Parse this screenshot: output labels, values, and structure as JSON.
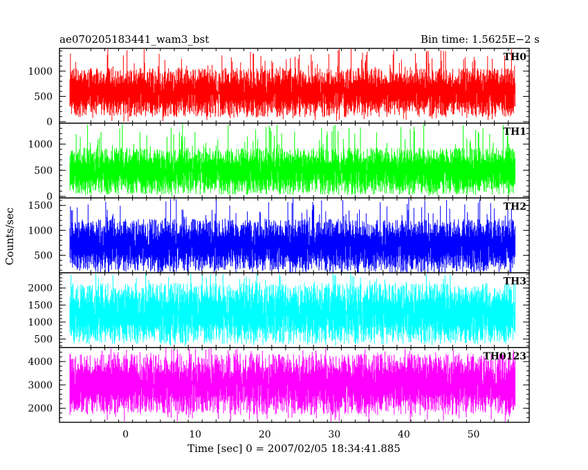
{
  "header": {
    "title": "ae070205183441_wam3_bst",
    "bin_time": "Bin time: 1.5625E−2 s"
  },
  "chart_data": {
    "type": "line",
    "xlabel": "Time [sec] 0 = 2007/02/05 18:34:41.885",
    "ylabel": "Counts/sec",
    "xlim": [
      -9.5,
      58
    ],
    "x_data_range": [
      -8,
      56
    ],
    "xticks": [
      0,
      10,
      20,
      30,
      40,
      50
    ],
    "grid": false,
    "panels": [
      {
        "label": "TH0",
        "color": "#ff0000",
        "ylim": [
          -30,
          1450
        ],
        "yticks": [
          0,
          500,
          1000
        ],
        "band": [
          250,
          900
        ],
        "spike_min": 0,
        "spike_max": 1450
      },
      {
        "label": "TH1",
        "color": "#00ff00",
        "ylim": [
          -30,
          1400
        ],
        "yticks": [
          0,
          500,
          1000
        ],
        "band": [
          180,
          780
        ],
        "spike_min": 0,
        "spike_max": 1400
      },
      {
        "label": "TH2",
        "color": "#0000ff",
        "ylim": [
          150,
          1650
        ],
        "yticks": [
          500,
          1000,
          1500
        ],
        "band": [
          330,
          1050
        ],
        "spike_min": 150,
        "spike_max": 1650
      },
      {
        "label": "TH3",
        "color": "#00ffff",
        "ylim": [
          250,
          2450
        ],
        "yticks": [
          500,
          1000,
          1500,
          2000
        ],
        "band": [
          650,
          1850
        ],
        "spike_min": 300,
        "spike_max": 2450
      },
      {
        "label": "TH0123",
        "color": "#ff00ff",
        "ylim": [
          1400,
          4600
        ],
        "yticks": [
          2000,
          3000,
          4000
        ],
        "band": [
          2150,
          3900
        ],
        "spike_min": 1400,
        "spike_max": 4600
      }
    ]
  }
}
